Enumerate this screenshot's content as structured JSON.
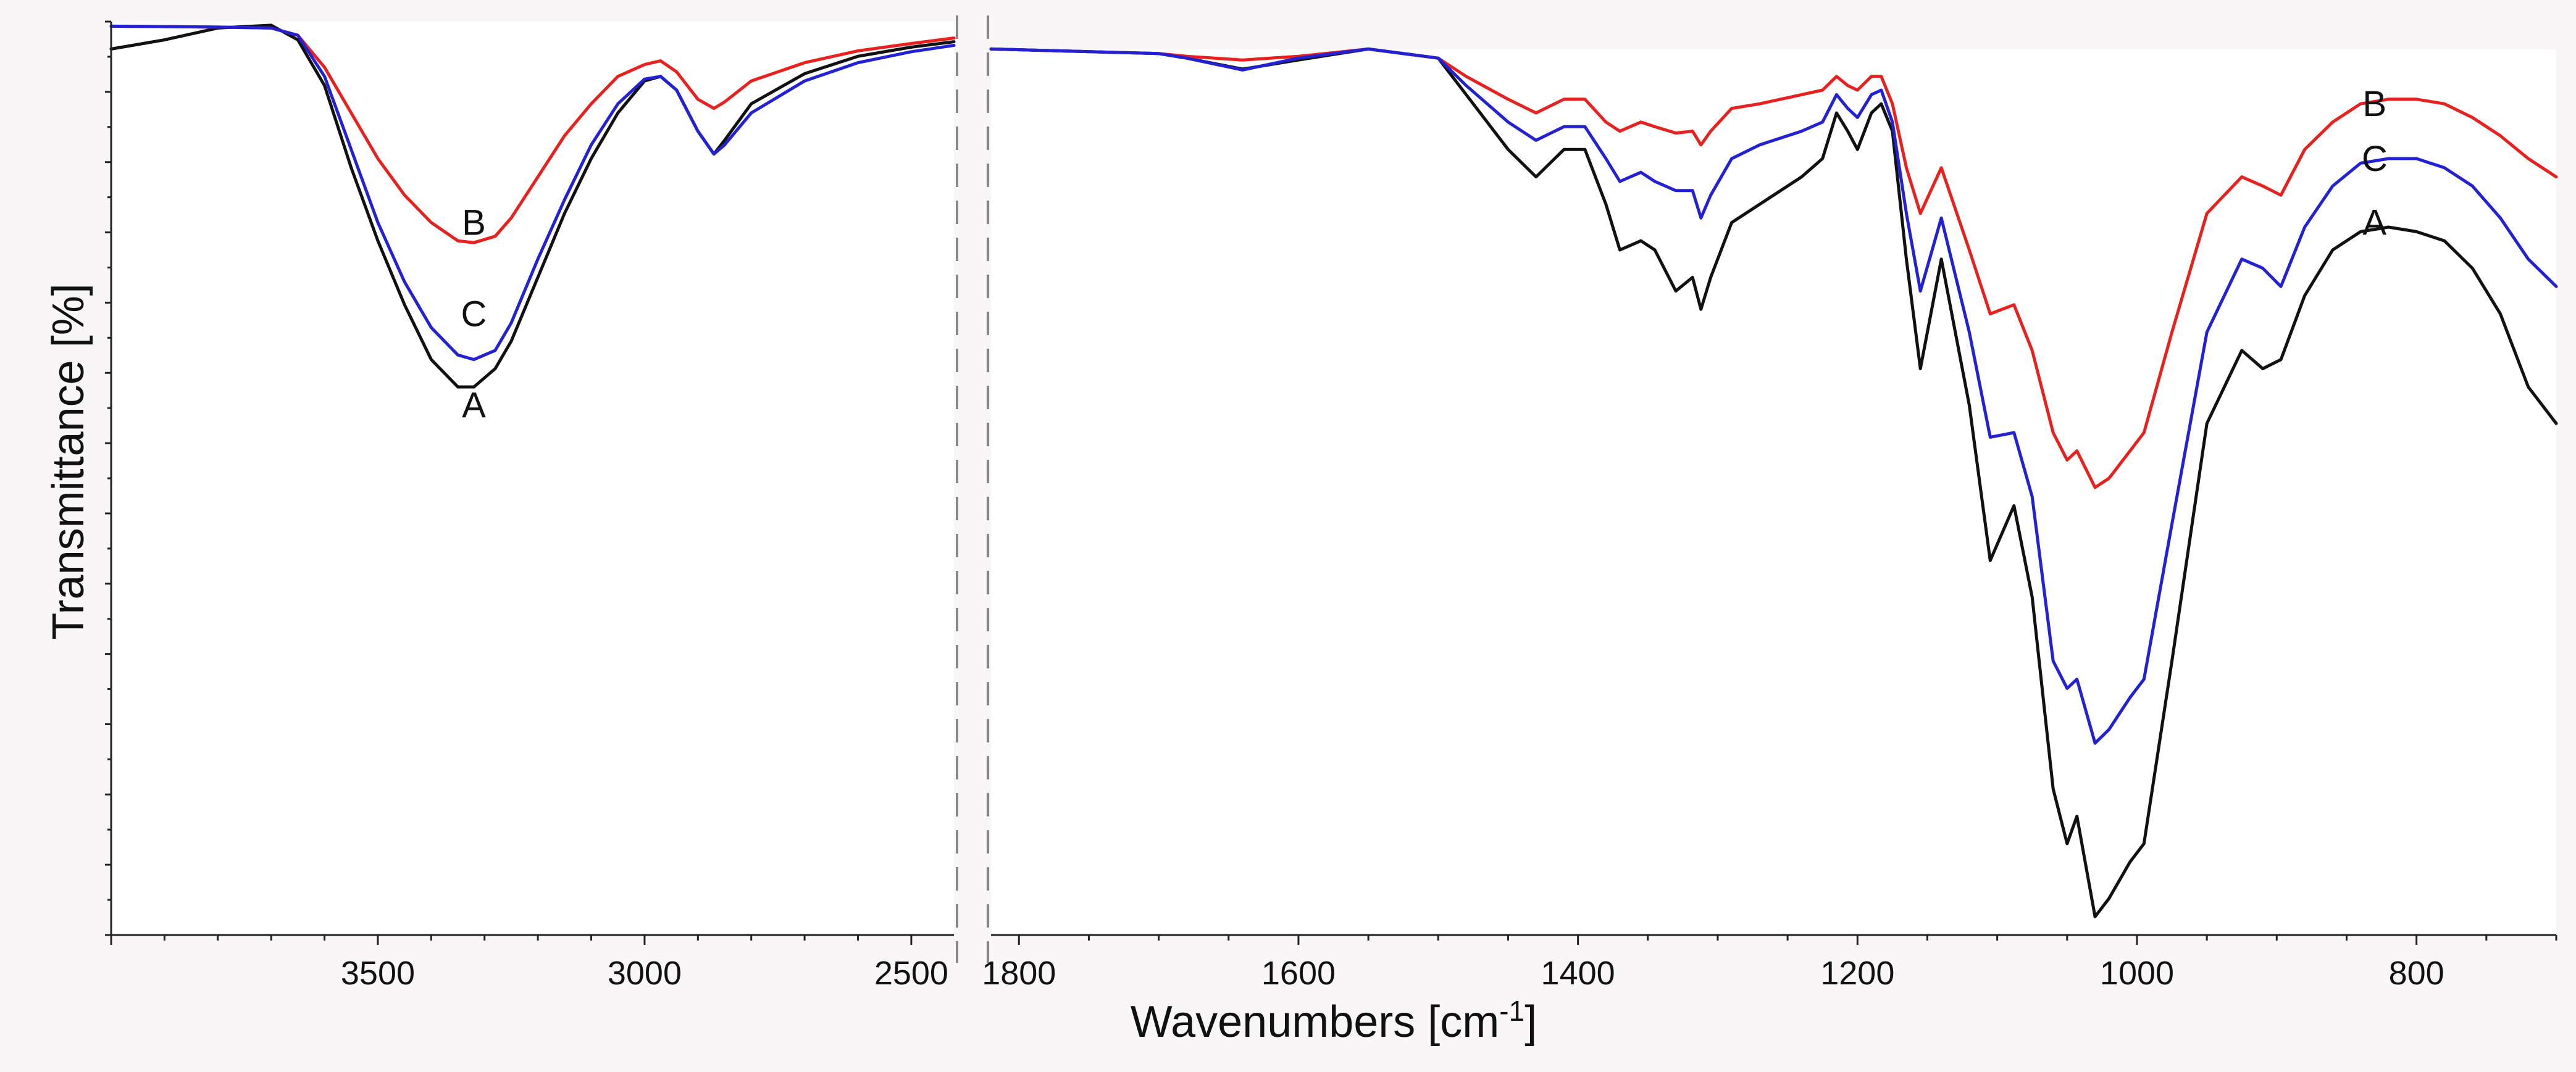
{
  "chart_data": {
    "type": "line",
    "xlabel": "Wavenumbers [cm",
    "xlabel_superscript": "-1",
    "xlabel_suffix": "]",
    "ylabel": "Transmittance [%]",
    "y_tick_labels_shown": false,
    "x_reversed": true,
    "axis_break": true,
    "grid": false,
    "legend": "none",
    "ylim": [
      0,
      100
    ],
    "panels": [
      {
        "xlim": [
          4000,
          2420
        ],
        "ticks": [
          3500,
          3000,
          2500
        ],
        "tick_labels": [
          "3500",
          "3000",
          "2500"
        ]
      },
      {
        "xlim": [
          1820,
          700
        ],
        "ticks": [
          1800,
          1600,
          1400,
          1200,
          1000,
          800
        ],
        "tick_labels": [
          "1800",
          "1600",
          "1400",
          "1200",
          "1000",
          "800"
        ]
      }
    ],
    "series": [
      {
        "name": "A",
        "color": "#111111",
        "label_position": [
          {
            "x": 3320,
            "y": 58
          },
          {
            "x": 830,
            "y": 78
          }
        ],
        "points": [
          [
            [
              4000,
              97
            ],
            [
              3900,
              98
            ],
            [
              3800,
              99.3
            ],
            [
              3700,
              99.6
            ],
            [
              3650,
              98
            ],
            [
              3600,
              93
            ],
            [
              3550,
              84
            ],
            [
              3500,
              76
            ],
            [
              3450,
              69
            ],
            [
              3400,
              63
            ],
            [
              3350,
              60
            ],
            [
              3320,
              60
            ],
            [
              3280,
              62
            ],
            [
              3250,
              65
            ],
            [
              3200,
              72
            ],
            [
              3150,
              79
            ],
            [
              3100,
              85
            ],
            [
              3050,
              90
            ],
            [
              3000,
              93.5
            ],
            [
              2970,
              94
            ],
            [
              2940,
              92.5
            ],
            [
              2900,
              88
            ],
            [
              2870,
              85.5
            ],
            [
              2850,
              87
            ],
            [
              2800,
              91
            ],
            [
              2700,
              94.3
            ],
            [
              2600,
              96.2
            ],
            [
              2500,
              97.2
            ],
            [
              2420,
              97.8
            ]
          ],
          [
            [
              1820,
              97
            ],
            [
              1700,
              96.5
            ],
            [
              1680,
              96
            ],
            [
              1640,
              94.8
            ],
            [
              1600,
              95.8
            ],
            [
              1550,
              97
            ],
            [
              1500,
              96
            ],
            [
              1480,
              92
            ],
            [
              1450,
              86
            ],
            [
              1430,
              83
            ],
            [
              1410,
              86
            ],
            [
              1395,
              86
            ],
            [
              1380,
              80
            ],
            [
              1370,
              75
            ],
            [
              1355,
              76
            ],
            [
              1345,
              75
            ],
            [
              1330,
              70.5
            ],
            [
              1318,
              72
            ],
            [
              1312,
              68.5
            ],
            [
              1305,
              72
            ],
            [
              1290,
              78
            ],
            [
              1270,
              80
            ],
            [
              1240,
              83
            ],
            [
              1225,
              85
            ],
            [
              1215,
              90
            ],
            [
              1207,
              88
            ],
            [
              1200,
              86
            ],
            [
              1190,
              90
            ],
            [
              1183,
              91
            ],
            [
              1175,
              88
            ],
            [
              1165,
              74
            ],
            [
              1155,
              62
            ],
            [
              1140,
              74
            ],
            [
              1120,
              58
            ],
            [
              1105,
              41
            ],
            [
              1088,
              47
            ],
            [
              1075,
              37
            ],
            [
              1060,
              16
            ],
            [
              1050,
              10
            ],
            [
              1043,
              13
            ],
            [
              1030,
              2
            ],
            [
              1020,
              4
            ],
            [
              1005,
              8
            ],
            [
              995,
              10
            ],
            [
              975,
              30
            ],
            [
              950,
              56
            ],
            [
              925,
              64
            ],
            [
              910,
              62
            ],
            [
              897,
              63
            ],
            [
              880,
              70
            ],
            [
              860,
              75
            ],
            [
              840,
              77
            ],
            [
              820,
              77.5
            ],
            [
              800,
              77
            ],
            [
              780,
              76
            ],
            [
              760,
              73
            ],
            [
              740,
              68
            ],
            [
              720,
              60
            ],
            [
              700,
              56
            ]
          ]
        ]
      },
      {
        "name": "B",
        "color": "#e8211f",
        "label_position": [
          {
            "x": 3320,
            "y": 78
          },
          {
            "x": 830,
            "y": 91
          }
        ],
        "points": [
          [
            [
              4000,
              99.5
            ],
            [
              3800,
              99.4
            ],
            [
              3700,
              99.3
            ],
            [
              3650,
              98.5
            ],
            [
              3600,
              95
            ],
            [
              3550,
              90
            ],
            [
              3500,
              85
            ],
            [
              3450,
              81
            ],
            [
              3400,
              78
            ],
            [
              3350,
              76
            ],
            [
              3320,
              75.8
            ],
            [
              3280,
              76.5
            ],
            [
              3250,
              78.5
            ],
            [
              3200,
              83
            ],
            [
              3150,
              87.5
            ],
            [
              3100,
              91
            ],
            [
              3050,
              94
            ],
            [
              3000,
              95.3
            ],
            [
              2970,
              95.7
            ],
            [
              2940,
              94.5
            ],
            [
              2900,
              91.5
            ],
            [
              2870,
              90.5
            ],
            [
              2850,
              91.2
            ],
            [
              2800,
              93.5
            ],
            [
              2700,
              95.5
            ],
            [
              2600,
              96.8
            ],
            [
              2500,
              97.6
            ],
            [
              2420,
              98.2
            ]
          ],
          [
            [
              1820,
              97
            ],
            [
              1700,
              96.5
            ],
            [
              1680,
              96.2
            ],
            [
              1640,
              95.8
            ],
            [
              1600,
              96.2
            ],
            [
              1550,
              97
            ],
            [
              1500,
              96
            ],
            [
              1480,
              94
            ],
            [
              1450,
              91.5
            ],
            [
              1430,
              90
            ],
            [
              1410,
              91.5
            ],
            [
              1395,
              91.5
            ],
            [
              1380,
              89
            ],
            [
              1370,
              88
            ],
            [
              1355,
              89
            ],
            [
              1345,
              88.5
            ],
            [
              1330,
              87.8
            ],
            [
              1318,
              88
            ],
            [
              1312,
              86.5
            ],
            [
              1305,
              88
            ],
            [
              1290,
              90.5
            ],
            [
              1270,
              91
            ],
            [
              1240,
              92
            ],
            [
              1225,
              92.5
            ],
            [
              1215,
              94
            ],
            [
              1207,
              93
            ],
            [
              1200,
              92.5
            ],
            [
              1190,
              94
            ],
            [
              1183,
              94
            ],
            [
              1175,
              91
            ],
            [
              1165,
              84
            ],
            [
              1155,
              79
            ],
            [
              1140,
              84
            ],
            [
              1120,
              75
            ],
            [
              1105,
              68
            ],
            [
              1088,
              69
            ],
            [
              1075,
              64
            ],
            [
              1060,
              55
            ],
            [
              1050,
              52
            ],
            [
              1043,
              53
            ],
            [
              1030,
              49
            ],
            [
              1020,
              50
            ],
            [
              1005,
              53
            ],
            [
              995,
              55
            ],
            [
              975,
              66
            ],
            [
              950,
              79
            ],
            [
              925,
              83
            ],
            [
              910,
              82
            ],
            [
              897,
              81
            ],
            [
              880,
              86
            ],
            [
              860,
              89
            ],
            [
              840,
              91
            ],
            [
              820,
              91.5
            ],
            [
              800,
              91.5
            ],
            [
              780,
              91
            ],
            [
              760,
              89.5
            ],
            [
              740,
              87.5
            ],
            [
              720,
              85
            ],
            [
              700,
              83
            ]
          ]
        ]
      },
      {
        "name": "C",
        "color": "#2222d4",
        "label_position": [
          {
            "x": 3320,
            "y": 68
          },
          {
            "x": 830,
            "y": 85
          }
        ],
        "points": [
          [
            [
              4000,
              99.5
            ],
            [
              3800,
              99.4
            ],
            [
              3700,
              99.3
            ],
            [
              3650,
              98.5
            ],
            [
              3600,
              94
            ],
            [
              3550,
              86
            ],
            [
              3500,
              78
            ],
            [
              3450,
              71.5
            ],
            [
              3400,
              66.5
            ],
            [
              3350,
              63.5
            ],
            [
              3320,
              63
            ],
            [
              3280,
              64
            ],
            [
              3250,
              67
            ],
            [
              3200,
              74
            ],
            [
              3150,
              80.5
            ],
            [
              3100,
              86.5
            ],
            [
              3050,
              91
            ],
            [
              3000,
              93.7
            ],
            [
              2970,
              94
            ],
            [
              2940,
              92.5
            ],
            [
              2900,
              88
            ],
            [
              2870,
              85.5
            ],
            [
              2850,
              86.5
            ],
            [
              2800,
              90
            ],
            [
              2700,
              93.5
            ],
            [
              2600,
              95.5
            ],
            [
              2500,
              96.7
            ],
            [
              2420,
              97.4
            ]
          ],
          [
            [
              1820,
              97
            ],
            [
              1700,
              96.5
            ],
            [
              1680,
              96
            ],
            [
              1640,
              94.7
            ],
            [
              1600,
              96
            ],
            [
              1550,
              97
            ],
            [
              1500,
              96
            ],
            [
              1480,
              93
            ],
            [
              1450,
              89
            ],
            [
              1430,
              87
            ],
            [
              1410,
              88.5
            ],
            [
              1395,
              88.5
            ],
            [
              1380,
              85
            ],
            [
              1370,
              82.5
            ],
            [
              1355,
              83.5
            ],
            [
              1345,
              82.5
            ],
            [
              1330,
              81.5
            ],
            [
              1318,
              81.5
            ],
            [
              1312,
              78.5
            ],
            [
              1305,
              81
            ],
            [
              1290,
              85
            ],
            [
              1270,
              86.5
            ],
            [
              1240,
              88
            ],
            [
              1225,
              89
            ],
            [
              1215,
              92
            ],
            [
              1207,
              90.5
            ],
            [
              1200,
              89.5
            ],
            [
              1190,
              92
            ],
            [
              1183,
              92.5
            ],
            [
              1175,
              89
            ],
            [
              1165,
              79
            ],
            [
              1155,
              70.5
            ],
            [
              1140,
              78.5
            ],
            [
              1120,
              66
            ],
            [
              1105,
              54.5
            ],
            [
              1088,
              55
            ],
            [
              1075,
              48
            ],
            [
              1060,
              30
            ],
            [
              1050,
              27
            ],
            [
              1043,
              28
            ],
            [
              1030,
              21
            ],
            [
              1020,
              22.5
            ],
            [
              1005,
              26
            ],
            [
              995,
              28
            ],
            [
              975,
              45
            ],
            [
              950,
              66
            ],
            [
              925,
              74
            ],
            [
              910,
              73
            ],
            [
              897,
              71
            ],
            [
              880,
              77.5
            ],
            [
              860,
              82
            ],
            [
              840,
              84.5
            ],
            [
              820,
              85
            ],
            [
              800,
              85
            ],
            [
              780,
              84
            ],
            [
              760,
              82
            ],
            [
              740,
              78.5
            ],
            [
              720,
              74
            ],
            [
              700,
              71
            ]
          ]
        ]
      }
    ]
  }
}
